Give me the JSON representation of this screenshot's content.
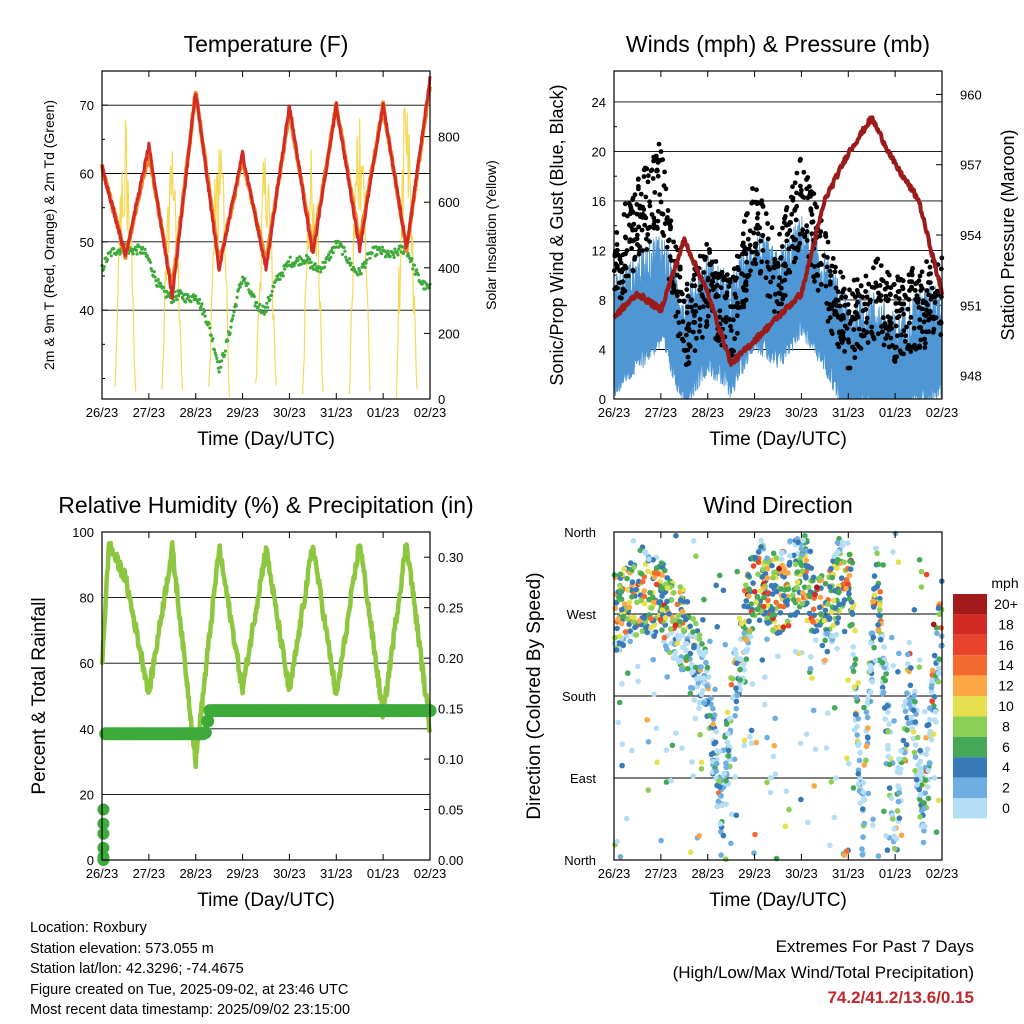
{
  "chart_data": [
    {
      "id": "temperature",
      "type": "line",
      "title": "Temperature (F)",
      "xlabel": "Time (Day/UTC)",
      "ylabel": "2m & 9m T (Red, Orange) & 2m Td (Green)",
      "y2label": "Solar Insolation (Yellow)",
      "x_ticks": [
        "26/23",
        "27/23",
        "28/23",
        "29/23",
        "30/23",
        "31/23",
        "01/23",
        "02/23"
      ],
      "ylim": [
        27,
        75
      ],
      "y_ticks": [
        40,
        50,
        60,
        70
      ],
      "y2lim": [
        0,
        1000
      ],
      "y2_ticks": [
        0,
        200,
        400,
        600,
        800
      ],
      "grid": "horizontal",
      "series": [
        {
          "key": "t9m",
          "color": "#f08a24",
          "axis": "left",
          "x": [
            0,
            0.5,
            1,
            1.5,
            2,
            2.5,
            3,
            3.5,
            4,
            4.5,
            5,
            5.5,
            6,
            6.5,
            7
          ],
          "values": [
            61,
            48,
            63,
            43,
            72,
            47,
            62,
            47,
            69,
            49,
            70,
            50,
            70,
            49,
            73
          ]
        },
        {
          "key": "t2m",
          "color": "#d42a26",
          "axis": "left",
          "x": [
            0,
            0.5,
            1,
            1.5,
            2,
            2.5,
            3,
            3.5,
            4,
            4.5,
            5,
            5.5,
            6,
            6.5,
            7
          ],
          "values": [
            61,
            48,
            64,
            42,
            72,
            46,
            63,
            46,
            70,
            48,
            70,
            49,
            70,
            49,
            74
          ]
        },
        {
          "key": "td2m",
          "color": "#3daa3a",
          "axis": "left",
          "x": [
            0,
            0.5,
            1,
            1.5,
            2,
            2.5,
            3,
            3.5,
            4,
            4.5,
            5,
            5.5,
            6,
            6.5,
            7
          ],
          "values": [
            46,
            50,
            47,
            41,
            43,
            32,
            44,
            40,
            48,
            46,
            49,
            46,
            49,
            48,
            43
          ]
        },
        {
          "key": "solar",
          "color": "#f5d547",
          "axis": "right",
          "x": [
            0,
            0.5,
            1,
            1.5,
            2,
            2.5,
            3,
            3.5,
            4,
            4.5,
            5,
            5.5,
            6,
            6.5,
            7
          ],
          "values": [
            0,
            900,
            0,
            900,
            0,
            900,
            0,
            880,
            0,
            900,
            0,
            910,
            0,
            900,
            0
          ]
        }
      ]
    },
    {
      "id": "winds",
      "type": "scatter",
      "title": "Winds (mph) & Pressure (mb)",
      "xlabel": "Time (Day/UTC)",
      "ylabel": "Sonic/Prop Wind & Gust (Blue, Black)",
      "y2label": "Station Pressure (Maroon)",
      "x_ticks": [
        "26/23",
        "27/23",
        "28/23",
        "29/23",
        "30/23",
        "31/23",
        "01/23",
        "02/23"
      ],
      "ylim": [
        0,
        26.5
      ],
      "y_ticks": [
        0,
        4,
        8,
        12,
        16,
        20,
        24
      ],
      "y2lim": [
        947,
        961
      ],
      "y2_ticks": [
        948,
        951,
        954,
        957,
        960
      ],
      "grid": "horizontal",
      "series": [
        {
          "key": "gust",
          "color": "#000000",
          "x": [
            0,
            0.5,
            1,
            1.5,
            2,
            2.5,
            3,
            3.5,
            4,
            4.5,
            5,
            5.5,
            6,
            6.5,
            7
          ],
          "values": [
            10,
            14,
            17,
            5,
            9,
            6,
            14,
            9,
            16,
            10,
            5,
            8,
            6,
            7,
            8
          ]
        },
        {
          "key": "wind",
          "color": "#4f97d4",
          "x": [
            0,
            0.5,
            1,
            1.5,
            2,
            2.5,
            3,
            3.5,
            4,
            4.5,
            5,
            5.5,
            6,
            6.5,
            7
          ],
          "values": [
            4,
            6,
            8,
            3,
            6,
            4,
            8,
            6,
            9,
            6,
            2,
            3,
            1,
            3,
            4
          ]
        },
        {
          "key": "pressure",
          "color": "#9b1b1b",
          "axis": "right",
          "x": [
            0,
            0.5,
            1,
            1.5,
            2,
            2.5,
            3,
            3.5,
            4,
            4.5,
            5,
            5.5,
            6,
            6.5,
            7
          ],
          "values": [
            950.5,
            951.5,
            950.8,
            953.8,
            951.5,
            948.5,
            949.5,
            950.5,
            951.5,
            955.5,
            957.5,
            959.0,
            957.0,
            955.5,
            951.5
          ]
        }
      ]
    },
    {
      "id": "humidity",
      "type": "line",
      "title": "Relative Humidity (%) & Precipitation (in)",
      "xlabel": "Time (Day/UTC)",
      "ylabel": "Percent & Total Rainfall",
      "x_ticks": [
        "26/23",
        "27/23",
        "28/23",
        "29/23",
        "30/23",
        "31/23",
        "01/23",
        "02/23"
      ],
      "ylim": [
        0,
        100
      ],
      "y_ticks": [
        0,
        20,
        40,
        60,
        80,
        100
      ],
      "y2lim": [
        0,
        0.325
      ],
      "y2_ticks": [
        "0.00",
        "0.05",
        "0.10",
        "0.15",
        "0.20",
        "0.25",
        "0.30"
      ],
      "grid": "horizontal",
      "series": [
        {
          "key": "rh",
          "color": "#8dc63f",
          "x": [
            0,
            0.15,
            0.5,
            1,
            1.5,
            2,
            2.5,
            3,
            3.5,
            4,
            4.5,
            5,
            5.5,
            6,
            6.5,
            7
          ],
          "values": [
            60,
            96,
            86,
            51,
            95,
            30,
            95,
            52,
            95,
            51,
            96,
            50,
            97,
            44,
            97,
            40
          ]
        },
        {
          "key": "precip",
          "color": "#3daa3a",
          "axis": "right",
          "x": [
            0,
            0.02,
            0.05,
            0.5,
            1,
            1.5,
            2.2,
            2.3,
            3,
            4,
            5,
            6,
            7
          ],
          "values": [
            0,
            0.08,
            0.125,
            0.125,
            0.125,
            0.125,
            0.125,
            0.148,
            0.148,
            0.148,
            0.148,
            0.148,
            0.148
          ]
        }
      ]
    },
    {
      "id": "direction",
      "type": "scatter",
      "title": "Wind Direction",
      "xlabel": "Time (Day/UTC)",
      "ylabel": "Direction (Colored By Speed)",
      "x_ticks": [
        "26/23",
        "27/23",
        "28/23",
        "29/23",
        "30/23",
        "31/23",
        "01/23",
        "02/23"
      ],
      "y_ticks": [
        "North",
        "East",
        "South",
        "West",
        "North"
      ],
      "ylim": [
        0,
        360
      ],
      "grid": "horizontal",
      "legend": {
        "title": "mph",
        "labels": [
          "20+",
          "18",
          "16",
          "14",
          "12",
          "10",
          "8",
          "6",
          "4",
          "2",
          "0"
        ],
        "colors": [
          "#a31a1c",
          "#d42a26",
          "#e8432b",
          "#f46b30",
          "#fca745",
          "#e6e04e",
          "#8ccf57",
          "#44a856",
          "#3879b8",
          "#6eaee0",
          "#b4def5"
        ]
      },
      "series": [
        {
          "key": "dir",
          "x": [
            0,
            0.3,
            0.6,
            1,
            1.5,
            2,
            2.3,
            2.6,
            3,
            3.5,
            4,
            4.5,
            5,
            5.3,
            5.6,
            6,
            6.3,
            6.6,
            7
          ],
          "values": [
            270,
            280,
            300,
            285,
            250,
            180,
            60,
            200,
            310,
            290,
            320,
            260,
            340,
            40,
            320,
            30,
            200,
            60,
            280
          ]
        }
      ]
    }
  ],
  "info": {
    "location": "Location: Roxbury",
    "elevation": "Station elevation: 573.055 m",
    "latlon": "Station lat/lon: 42.3296; -74.4675",
    "created": "Figure created on Tue, 2025-09-02, at 23:46 UTC",
    "timestamp": "Most recent data timestamp: 2025/09/02 23:15:00"
  },
  "extremes": {
    "title": "Extremes For Past 7 Days",
    "subtitle": "(High/Low/Max Wind/Total Precipitation)",
    "values": "74.2/41.2/13.6/0.15"
  }
}
